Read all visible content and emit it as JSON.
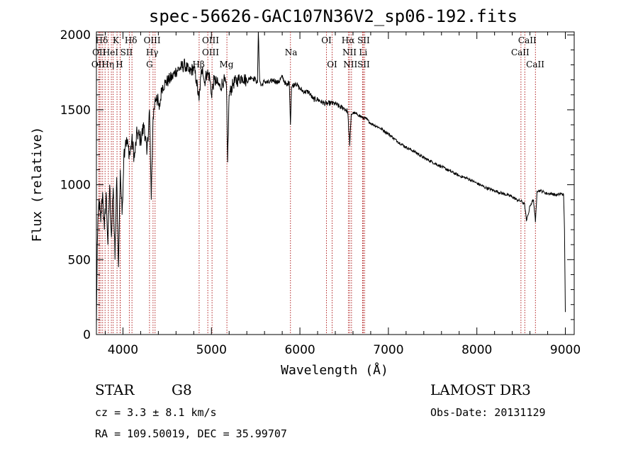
{
  "chart_data": {
    "type": "line",
    "title": "spec-56626-GAC107N36V2_sp06-192.fits",
    "xlabel": "Wavelength (Å)",
    "ylabel": "Flux (relative)",
    "xlim": [
      3700,
      9100
    ],
    "ylim": [
      0,
      2020
    ],
    "xticks": [
      4000,
      5000,
      6000,
      7000,
      8000,
      9000
    ],
    "xtick_labels": [
      "4000",
      "5000",
      "6000",
      "7000",
      "8000",
      "9000"
    ],
    "yticks": [
      0,
      500,
      1000,
      1500,
      2000
    ],
    "ytick_labels": [
      "0",
      "500",
      "1000",
      "1500",
      "2000"
    ],
    "grid": false,
    "series": [
      {
        "name": "flux",
        "x": [
          3700,
          3710,
          3730,
          3750,
          3770,
          3790,
          3810,
          3830,
          3850,
          3870,
          3890,
          3910,
          3930,
          3950,
          3970,
          3990,
          4010,
          4030,
          4060,
          4080,
          4100,
          4130,
          4160,
          4200,
          4240,
          4270,
          4300,
          4320,
          4340,
          4360,
          4380,
          4410,
          4440,
          4480,
          4520,
          4560,
          4600,
          4650,
          4700,
          4750,
          4800,
          4830,
          4860,
          4880,
          4900,
          4920,
          4950,
          4980,
          5000,
          5030,
          5060,
          5100,
          5140,
          5170,
          5183,
          5200,
          5250,
          5300,
          5350,
          5400,
          5450,
          5500,
          5520,
          5530,
          5545,
          5560,
          5600,
          5650,
          5700,
          5750,
          5800,
          5850,
          5880,
          5893,
          5905,
          5950,
          6000,
          6050,
          6100,
          6150,
          6200,
          6250,
          6300,
          6350,
          6400,
          6450,
          6500,
          6540,
          6563,
          6580,
          6600,
          6650,
          6700,
          6750,
          6800,
          6900,
          7000,
          7100,
          7200,
          7300,
          7400,
          7500,
          7600,
          7700,
          7800,
          7900,
          8000,
          8100,
          8200,
          8300,
          8400,
          8450,
          8500,
          8540,
          8560,
          8580,
          8600,
          8640,
          8662,
          8680,
          8720,
          8760,
          8800,
          8850,
          8900,
          8950,
          8980,
          8990,
          9000
        ],
        "values": [
          50,
          600,
          900,
          750,
          950,
          700,
          950,
          600,
          1000,
          650,
          980,
          500,
          1050,
          450,
          1100,
          800,
          1200,
          1300,
          1250,
          1200,
          1300,
          1180,
          1350,
          1300,
          1400,
          1200,
          1500,
          900,
          1450,
          1550,
          1600,
          1500,
          1650,
          1680,
          1700,
          1720,
          1760,
          1780,
          1800,
          1750,
          1780,
          1700,
          1560,
          1720,
          1790,
          1680,
          1750,
          1720,
          1600,
          1700,
          1680,
          1650,
          1700,
          1650,
          1150,
          1600,
          1680,
          1700,
          1720,
          1690,
          1720,
          1700,
          1680,
          2020,
          1700,
          1660,
          1690,
          1680,
          1700,
          1680,
          1720,
          1660,
          1690,
          1400,
          1650,
          1680,
          1640,
          1620,
          1620,
          1570,
          1570,
          1550,
          1540,
          1545,
          1540,
          1520,
          1510,
          1490,
          1260,
          1470,
          1480,
          1470,
          1450,
          1440,
          1410,
          1380,
          1340,
          1290,
          1250,
          1220,
          1180,
          1150,
          1120,
          1090,
          1060,
          1040,
          1010,
          980,
          960,
          940,
          920,
          900,
          890,
          870,
          760,
          800,
          860,
          900,
          750,
          960,
          960,
          950,
          940,
          940,
          930,
          940,
          935,
          700,
          150
        ]
      }
    ],
    "lines": {
      "positions": [
        3727,
        3734,
        3750,
        3770,
        3798,
        3835,
        3869,
        3889,
        3933,
        3968,
        3970,
        4072,
        4102,
        4300,
        4340,
        4363,
        4861,
        4959,
        5007,
        5175,
        5893,
        6300,
        6364,
        6548,
        6563,
        6583,
        6708,
        6716,
        6731,
        8498,
        8542,
        8662
      ],
      "labels_row1": [
        {
          "text": "Hδ",
          "x": 3760
        },
        {
          "text": "K",
          "x": 3920
        },
        {
          "text": "Hδ",
          "x": 4090
        },
        {
          "text": "OIII",
          "x": 4330
        },
        {
          "text": "OIII",
          "x": 4990
        },
        {
          "text": "OI",
          "x": 6300
        },
        {
          "text": "Hα",
          "x": 6545
        },
        {
          "text": "SII",
          "x": 6720
        },
        {
          "text": "CaII",
          "x": 8570
        }
      ],
      "labels_row2": [
        {
          "text": "OII",
          "x": 3730
        },
        {
          "text": "HeI",
          "x": 3860
        },
        {
          "text": "SII",
          "x": 4040
        },
        {
          "text": "Hγ",
          "x": 4330
        },
        {
          "text": "OIII",
          "x": 4990
        },
        {
          "text": "Na",
          "x": 5900
        },
        {
          "text": "NII",
          "x": 6560
        },
        {
          "text": "Li",
          "x": 6715
        },
        {
          "text": "CaII",
          "x": 8490
        }
      ],
      "labels_row3": [
        {
          "text": "OII",
          "x": 3720
        },
        {
          "text": "Hη",
          "x": 3830
        },
        {
          "text": "H",
          "x": 3960
        },
        {
          "text": "G",
          "x": 4300
        },
        {
          "text": "Hβ",
          "x": 4855
        },
        {
          "text": "Mg",
          "x": 5170
        },
        {
          "text": "OI",
          "x": 6364
        },
        {
          "text": "NII",
          "x": 6570
        },
        {
          "text": "SII",
          "x": 6720
        },
        {
          "text": "CaII",
          "x": 8660
        }
      ]
    },
    "info": {
      "object_class": "STAR",
      "subclass": "G8",
      "survey": "LAMOST DR3",
      "redshift": "cz = 3.3 ± 8.1 km/s",
      "obs_date": "Obs-Date: 20131129",
      "coords": "RA = 109.50019, DEC =  35.99707"
    }
  }
}
